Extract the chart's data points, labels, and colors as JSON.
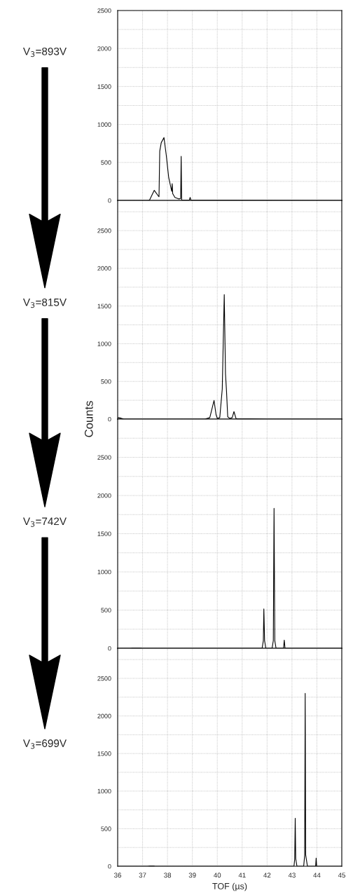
{
  "chart_data": [
    {
      "type": "line",
      "annotations": [
        "V$_{3}$=893V"
      ],
      "xlim": [
        36,
        45
      ],
      "xticks": [
        36,
        37,
        38,
        39,
        40,
        41,
        42,
        43,
        44,
        45
      ],
      "ylim": [
        0,
        2500
      ],
      "yticks": [
        0,
        {
          "value": 250,
          "label": null
        },
        500,
        {
          "value": 750,
          "label": null
        },
        1000,
        {
          "value": 1250,
          "label": null
        },
        1500,
        {
          "value": 1750,
          "label": null
        },
        2000,
        {
          "value": 2250,
          "label": null
        },
        2500
      ],
      "grid": true,
      "tick_labels": "y",
      "series": [
        {
          "color": "#000000",
          "x": [
            36,
            37.2,
            37.28,
            37.47,
            37.63,
            37.66,
            37.69,
            37.75,
            37.86,
            37.95,
            38.05,
            38.15,
            38.17,
            38.19,
            38.21,
            38.3,
            38.45,
            38.53,
            38.55,
            38.57,
            38.62,
            38.88,
            38.91,
            38.94,
            39.2,
            40.5,
            45
          ],
          "values": [
            0,
            0,
            5,
            133,
            60,
            50,
            650,
            760,
            827,
            600,
            300,
            150,
            120,
            220,
            90,
            40,
            20,
            25,
            580,
            5,
            5,
            5,
            40,
            5,
            5,
            5,
            0
          ]
        }
      ]
    },
    {
      "type": "line",
      "annotations": [
        "V$_{3}$=815V"
      ],
      "ylabel": "Counts",
      "xlim": [
        36,
        45
      ],
      "xticks": [
        36,
        37,
        38,
        39,
        40,
        41,
        42,
        43,
        44,
        45
      ],
      "ylim": [
        0,
        2900
      ],
      "yticks": [
        0,
        {
          "value": 250,
          "label": null
        },
        500,
        {
          "value": 750,
          "label": null
        },
        1000,
        {
          "value": 1250,
          "label": null
        },
        1500,
        {
          "value": 1750,
          "label": null
        },
        2000,
        {
          "value": 2250,
          "label": null
        },
        2500,
        {
          "value": 2750,
          "label": null
        }
      ],
      "grid": true,
      "tick_labels": "y",
      "series": [
        {
          "color": "#000000",
          "x": [
            36,
            36.1,
            36.25,
            39.5,
            39.7,
            39.87,
            39.95,
            40.0,
            40.1,
            40.2,
            40.28,
            40.33,
            40.37,
            40.42,
            40.5,
            40.6,
            40.67,
            40.75,
            40.8,
            41.3,
            42,
            45
          ],
          "values": [
            20,
            15,
            0,
            0,
            20,
            248,
            60,
            10,
            20,
            400,
            1652,
            600,
            375,
            30,
            10,
            20,
            100,
            10,
            5,
            5,
            0,
            0
          ]
        }
      ]
    },
    {
      "type": "line",
      "annotations": [
        "V$_{3}$=742V"
      ],
      "xlim": [
        36,
        45
      ],
      "xticks": [
        36,
        37,
        38,
        39,
        40,
        41,
        42,
        43,
        44,
        45
      ],
      "ylim": [
        0,
        3000
      ],
      "yticks": [
        0,
        {
          "value": 250,
          "label": null
        },
        500,
        {
          "value": 750,
          "label": null
        },
        1000,
        {
          "value": 1250,
          "label": null
        },
        1500,
        {
          "value": 1750,
          "label": null
        },
        2000,
        {
          "value": 2250,
          "label": null
        },
        2500,
        {
          "value": 2750,
          "label": null
        }
      ],
      "grid": true,
      "tick_labels": "y",
      "series": [
        {
          "color": "#000000",
          "x": [
            36,
            36.5,
            36.6,
            36.9,
            37.0,
            41.8,
            41.85,
            41.87,
            41.9,
            41.95,
            42.2,
            42.25,
            42.28,
            42.31,
            42.36,
            42.66,
            42.69,
            42.72,
            45
          ],
          "values": [
            0,
            0,
            5,
            5,
            0,
            0,
            100,
            515,
            100,
            0,
            0,
            100,
            1833,
            100,
            0,
            0,
            108,
            0,
            0
          ]
        }
      ]
    },
    {
      "type": "line",
      "annotations": [
        "V$_{3}$=699V"
      ],
      "xlabel": "TOF (µs)",
      "xlim": [
        36,
        45
      ],
      "xticks": [
        36,
        37,
        38,
        39,
        40,
        41,
        42,
        43,
        44,
        45
      ],
      "ylim": [
        0,
        2900
      ],
      "yticks": [
        0,
        {
          "value": 250,
          "label": null
        },
        500,
        {
          "value": 750,
          "label": null
        },
        1000,
        {
          "value": 1250,
          "label": null
        },
        1500,
        {
          "value": 1750,
          "label": null
        },
        2000,
        {
          "value": 2250,
          "label": null
        },
        2500,
        {
          "value": 2750,
          "label": null
        }
      ],
      "grid": true,
      "series": [
        {
          "color": "#000000",
          "x": [
            36,
            37.2,
            37.3,
            37.45,
            37.5,
            43.08,
            43.11,
            43.13,
            43.15,
            43.2,
            43.47,
            43.51,
            43.53,
            43.55,
            43.62,
            43.95,
            43.97,
            43.99,
            45
          ],
          "values": [
            0,
            0,
            5,
            5,
            0,
            0,
            100,
            639,
            100,
            0,
            0,
            150,
            2300,
            150,
            0,
            0,
            108,
            0,
            0
          ]
        }
      ]
    }
  ]
}
